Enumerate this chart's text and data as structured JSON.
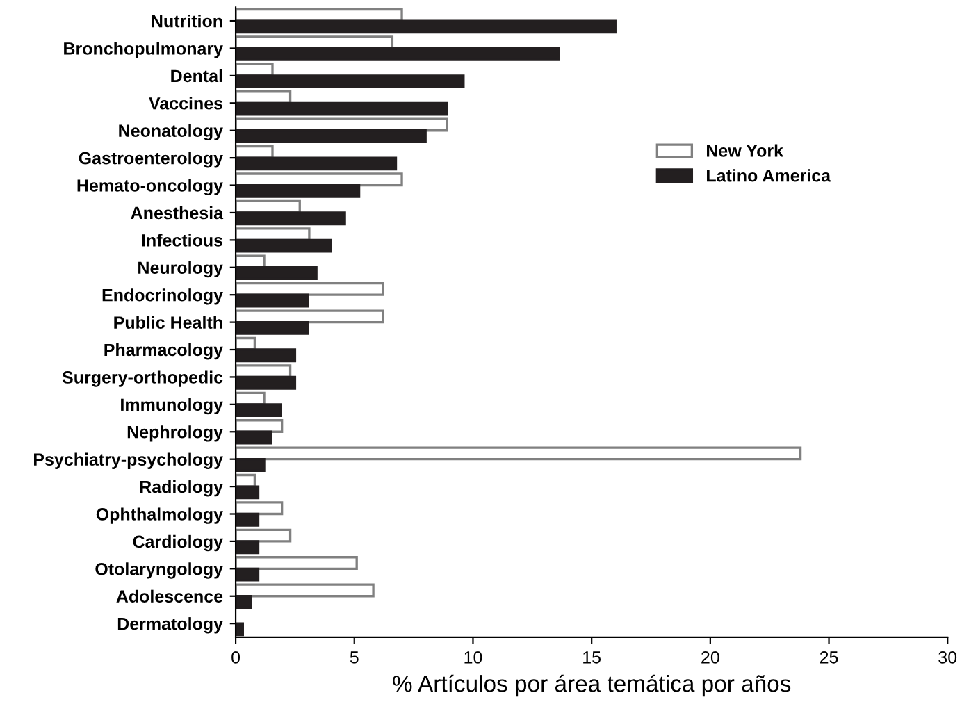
{
  "chart_data": {
    "type": "bar",
    "orientation": "horizontal",
    "xlabel": "% Artículos por área temática por años",
    "categories": [
      "Nutrition",
      "Bronchopulmonary",
      "Dental",
      "Vaccines",
      "Neonatology",
      "Gastroenterology",
      "Hemato-oncology",
      "Anesthesia",
      "Infectious",
      "Neurology",
      "Endocrinology",
      "Public Health",
      "Pharmacology",
      "Surgery-orthopedic",
      "Immunology",
      "Nephrology",
      "Psychiatry-psychology",
      "Radiology",
      "Ophthalmology",
      "Cardiology",
      "Otolaryngology",
      "Adolescence",
      "Dermatology"
    ],
    "series": [
      {
        "name": "New York",
        "color": "#ffffff",
        "values": [
          7.0,
          6.6,
          1.55,
          2.3,
          8.9,
          1.55,
          7.0,
          2.7,
          3.1,
          1.2,
          6.2,
          6.2,
          0.8,
          2.3,
          1.2,
          1.95,
          23.8,
          0.8,
          1.95,
          2.3,
          5.1,
          5.8,
          null
        ]
      },
      {
        "name": "Latino America",
        "color": "#231f20",
        "values": [
          16.0,
          13.6,
          9.6,
          8.9,
          8.0,
          6.75,
          5.2,
          4.6,
          4.0,
          3.4,
          3.05,
          3.05,
          2.5,
          2.5,
          1.9,
          1.5,
          1.2,
          0.95,
          0.95,
          0.95,
          0.95,
          0.65,
          0.3
        ]
      }
    ],
    "xlim": [
      0,
      30
    ],
    "xticks": [
      0,
      5,
      10,
      15,
      20,
      25,
      30
    ],
    "grid": false,
    "legend": "right"
  }
}
